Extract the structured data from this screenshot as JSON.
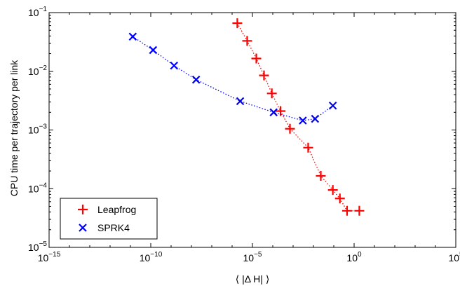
{
  "chart_data": {
    "type": "scatter",
    "title": "",
    "xlabel": "⟨ |Δ H| ⟩",
    "ylabel": "CPU time per trajectory per link",
    "xscale": "log",
    "yscale": "log",
    "xlim": [
      1e-15,
      100000.0
    ],
    "ylim": [
      1e-05,
      0.1
    ],
    "xticks": [
      {
        "base": "10",
        "exp": "−15",
        "value": 1e-15
      },
      {
        "base": "10",
        "exp": "−10",
        "value": 1e-10
      },
      {
        "base": "10",
        "exp": "−5",
        "value": 1e-05
      },
      {
        "base": "10",
        "exp": "0",
        "value": 1
      },
      {
        "base": "10",
        "exp": "5",
        "value": 100000.0
      }
    ],
    "yticks": [
      {
        "base": "10",
        "exp": "−5",
        "value": 1e-05
      },
      {
        "base": "10",
        "exp": "−4",
        "value": 0.0001
      },
      {
        "base": "10",
        "exp": "−3",
        "value": 0.001
      },
      {
        "base": "10",
        "exp": "−2",
        "value": 0.01
      },
      {
        "base": "10",
        "exp": "−1",
        "value": 0.1
      }
    ],
    "grid": false,
    "legend_position": "bottom-left",
    "series": [
      {
        "name": "Leapfrog",
        "marker": "plus",
        "color": "#ff0000",
        "line": "dotted",
        "x": [
          1.8e-06,
          5.5e-06,
          1.55e-05,
          3.7e-05,
          9e-05,
          0.00024,
          0.0007,
          0.0055,
          0.023,
          0.09,
          0.2,
          0.45,
          1.8
        ],
        "y": [
          0.066,
          0.033,
          0.0165,
          0.0085,
          0.0042,
          0.0021,
          0.00105,
          0.0005,
          0.000165,
          9.5e-05,
          6.8e-05,
          4.2e-05,
          4.2e-05
        ]
      },
      {
        "name": "SPRK4",
        "marker": "x",
        "color": "#0000ff",
        "line": "dotted",
        "x": [
          1.3e-11,
          1.3e-10,
          1.4e-09,
          1.7e-08,
          2.5e-06,
          0.00011,
          0.003,
          0.012,
          0.09
        ],
        "y": [
          0.039,
          0.023,
          0.0125,
          0.0072,
          0.0031,
          0.002,
          0.00145,
          0.00155,
          0.0026
        ]
      }
    ]
  }
}
